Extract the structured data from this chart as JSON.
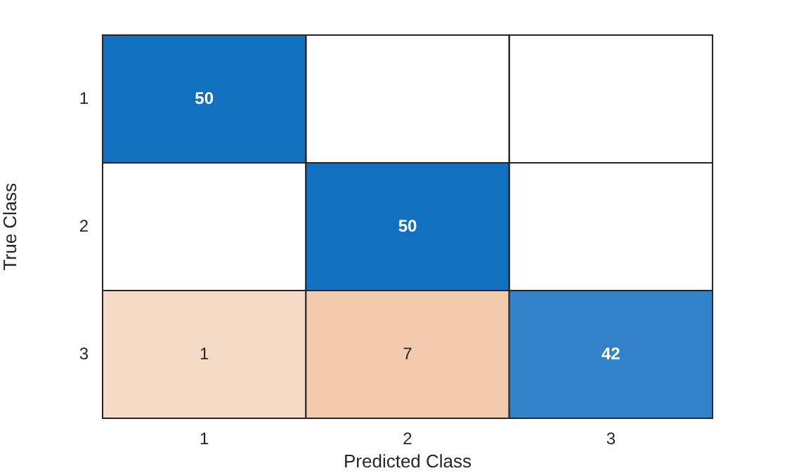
{
  "chart_data": {
    "type": "heatmap",
    "xlabel": "Predicted Class",
    "ylabel": "True Class",
    "data_labels": true,
    "categories": [
      "1",
      "2",
      "3"
    ],
    "y_categories": [
      "1",
      "2",
      "3"
    ],
    "cells": [
      [
        50,
        null,
        null
      ],
      [
        null,
        50,
        null
      ],
      [
        1,
        7,
        42
      ]
    ],
    "colors": [
      [
        "#1170c0",
        null,
        null
      ],
      [
        null,
        "#1170c0",
        null
      ],
      [
        "#f6dac8",
        "#f2caae",
        "#3182c8"
      ]
    ]
  }
}
